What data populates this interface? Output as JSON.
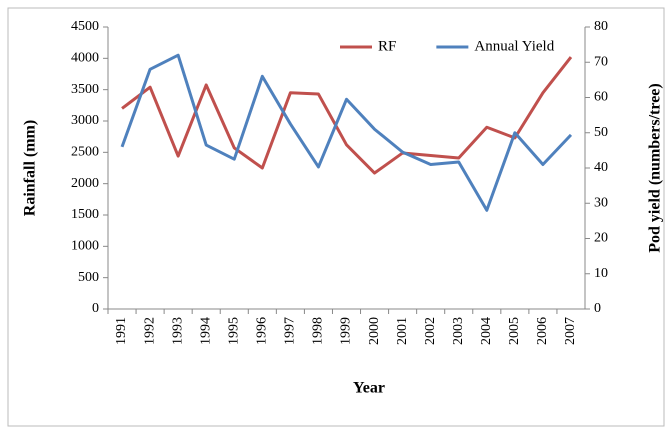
{
  "chart_data": {
    "type": "line",
    "x_label": "Year",
    "y_label": "Rainfall (mm)",
    "y2_label": "Pod yield (numbers/tree)",
    "categories": [
      "1991",
      "1992",
      "1993",
      "1994",
      "1995",
      "1996",
      "1997",
      "1998",
      "1999",
      "2000",
      "2001",
      "2002",
      "2003",
      "2004",
      "2005",
      "2006",
      "2007"
    ],
    "series": [
      {
        "name": "RF",
        "color": "#c0504d",
        "values": [
          3200,
          3540,
          2440,
          3575,
          2570,
          2250,
          3450,
          3430,
          2620,
          2170,
          2490,
          2450,
          2410,
          2900,
          2730,
          3450,
          4020
        ]
      },
      {
        "name": "Annual Yield",
        "color": "#4f81bd",
        "axis": "y2",
        "values": [
          46,
          68,
          72,
          46.5,
          42.5,
          66,
          52.5,
          40.3,
          59.5,
          51,
          44.5,
          41,
          41.7,
          28,
          50,
          41,
          49.4
        ]
      }
    ],
    "ylim": [
      0,
      4500
    ],
    "yticks": [
      0,
      500,
      1000,
      1500,
      2000,
      2500,
      3000,
      3500,
      4000,
      4500
    ],
    "y2lim": [
      0,
      80
    ],
    "y2ticks": [
      0,
      10,
      20,
      30,
      40,
      50,
      60,
      70,
      80
    ],
    "grid": false,
    "legend": "top-right"
  }
}
